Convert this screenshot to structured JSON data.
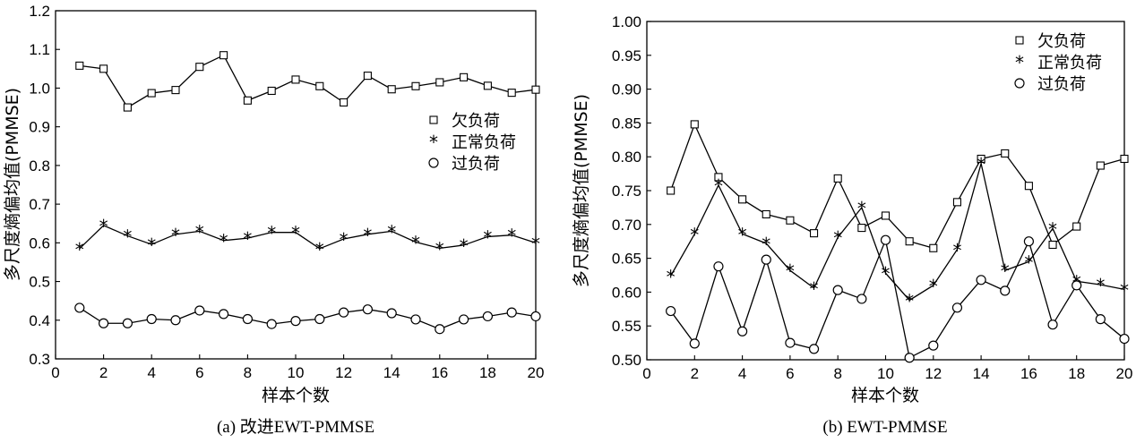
{
  "chart_data": [
    {
      "type": "line",
      "caption": "(a) 改进EWT-PMMSE",
      "xlabel": "样本个数",
      "ylabel": "多尺度熵偏均值(PMMSE)",
      "xlim": [
        0,
        20
      ],
      "ylim": [
        0.3,
        1.2
      ],
      "xticks": [
        "0",
        "2",
        "4",
        "6",
        "8",
        "10",
        "12",
        "14",
        "16",
        "18",
        "20"
      ],
      "yticks": [
        "0.3",
        "0.4",
        "0.5",
        "0.6",
        "0.7",
        "0.8",
        "0.9",
        "1.0",
        "1.1",
        "1.2"
      ],
      "legend_position": "right-middle",
      "x": [
        1,
        2,
        3,
        4,
        5,
        6,
        7,
        8,
        9,
        10,
        11,
        12,
        13,
        14,
        15,
        16,
        17,
        18,
        19,
        20
      ],
      "series": [
        {
          "name": "欠负荷",
          "marker": "square",
          "values": [
            1.058,
            1.05,
            0.95,
            0.987,
            0.995,
            1.055,
            1.085,
            0.968,
            0.993,
            1.022,
            1.005,
            0.963,
            1.032,
            0.997,
            1.005,
            1.015,
            1.028,
            1.006,
            0.988,
            0.996
          ]
        },
        {
          "name": "正常负荷",
          "marker": "star",
          "values": [
            0.585,
            0.645,
            0.618,
            0.596,
            0.622,
            0.63,
            0.606,
            0.612,
            0.627,
            0.627,
            0.585,
            0.61,
            0.622,
            0.63,
            0.602,
            0.586,
            0.594,
            0.616,
            0.62,
            0.6
          ]
        },
        {
          "name": "过负荷",
          "marker": "circle",
          "values": [
            0.432,
            0.392,
            0.392,
            0.403,
            0.4,
            0.425,
            0.416,
            0.403,
            0.39,
            0.398,
            0.403,
            0.42,
            0.428,
            0.418,
            0.402,
            0.377,
            0.402,
            0.41,
            0.42,
            0.41
          ]
        }
      ]
    },
    {
      "type": "line",
      "caption": "(b) EWT-PMMSE",
      "xlabel": "样本个数",
      "ylabel": "多尺度熵偏均值(PMMSE)",
      "xlim": [
        0,
        20
      ],
      "ylim": [
        0.5,
        1.0
      ],
      "xticks": [
        "0",
        "2",
        "4",
        "6",
        "8",
        "10",
        "12",
        "14",
        "16",
        "18",
        "20"
      ],
      "yticks": [
        "0.50",
        "0.55",
        "0.60",
        "0.65",
        "0.70",
        "0.75",
        "0.80",
        "0.85",
        "0.90",
        "0.95",
        "1.00"
      ],
      "legend_position": "top-right",
      "x": [
        1,
        2,
        3,
        4,
        5,
        6,
        7,
        8,
        9,
        10,
        11,
        12,
        13,
        14,
        15,
        16,
        17,
        18,
        19,
        20
      ],
      "series": [
        {
          "name": "欠负荷",
          "marker": "square",
          "values": [
            0.75,
            0.848,
            0.77,
            0.737,
            0.715,
            0.706,
            0.687,
            0.768,
            0.695,
            0.713,
            0.675,
            0.665,
            0.733,
            0.797,
            0.805,
            0.757,
            0.67,
            0.697,
            0.787,
            0.797
          ]
        },
        {
          "name": "正常负荷",
          "marker": "star",
          "values": [
            0.624,
            0.686,
            0.758,
            0.686,
            0.672,
            0.632,
            0.606,
            0.681,
            0.725,
            0.628,
            0.588,
            0.61,
            0.663,
            0.79,
            0.632,
            0.645,
            0.694,
            0.616,
            0.611,
            0.604
          ]
        },
        {
          "name": "过负荷",
          "marker": "circle",
          "values": [
            0.572,
            0.524,
            0.638,
            0.542,
            0.648,
            0.525,
            0.516,
            0.603,
            0.59,
            0.677,
            0.503,
            0.521,
            0.577,
            0.618,
            0.602,
            0.675,
            0.552,
            0.61,
            0.56,
            0.531
          ]
        }
      ]
    }
  ]
}
